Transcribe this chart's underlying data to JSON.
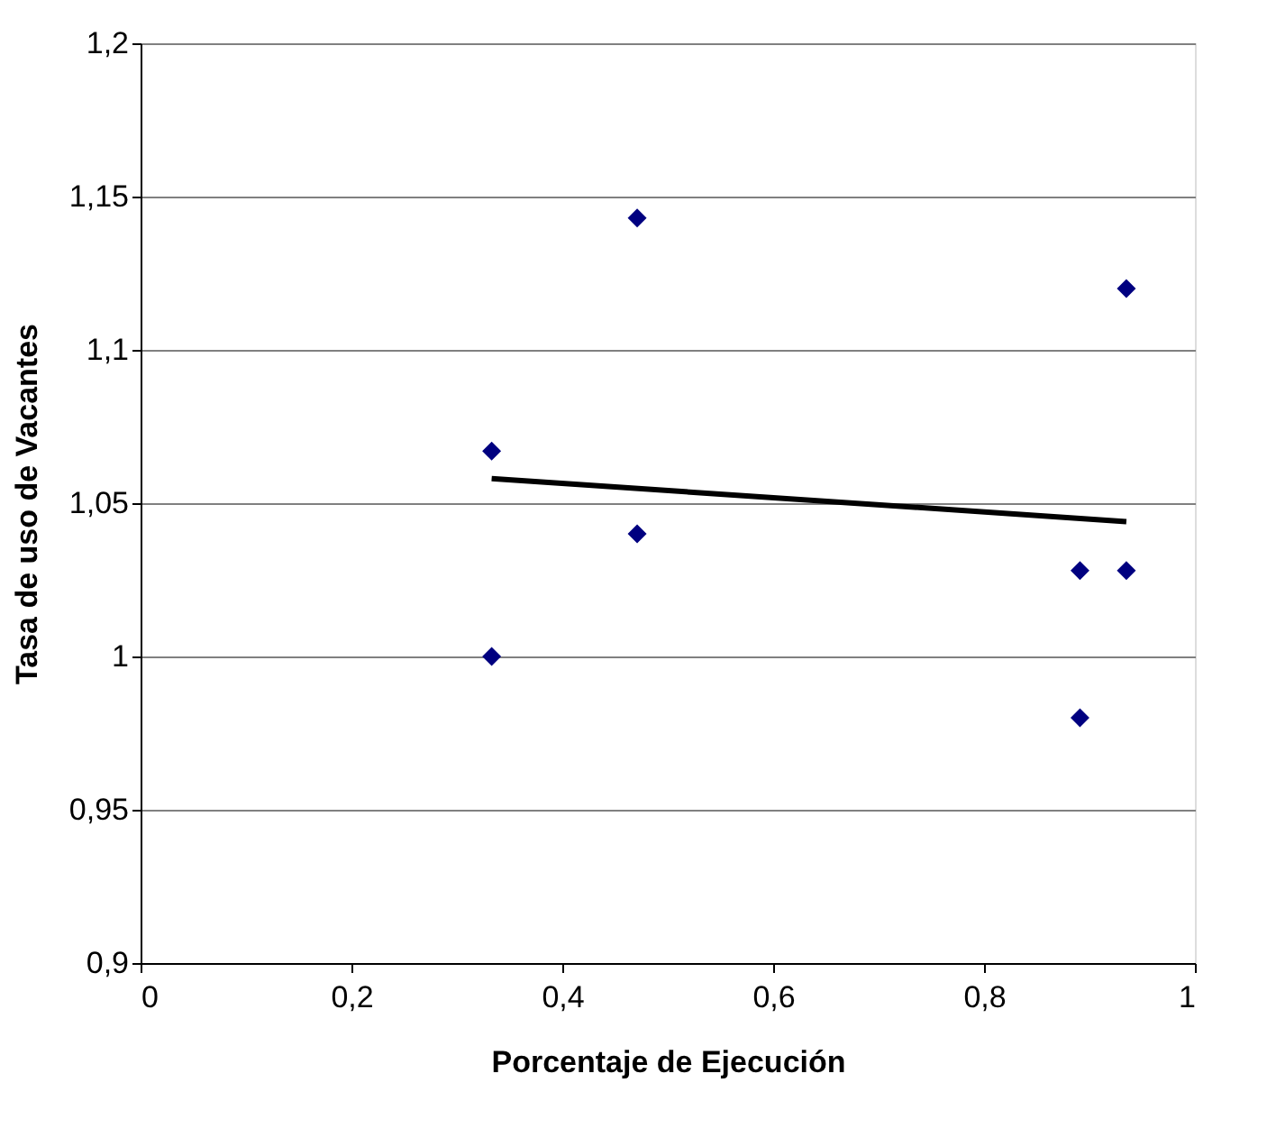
{
  "chart_data": {
    "type": "scatter",
    "xlabel": "Porcentaje de Ejecución",
    "ylabel": "Tasa de uso de Vacantes",
    "xlim": [
      0,
      1
    ],
    "xticks": [
      0,
      {
        "value": 0.2,
        "label": "0,2"
      },
      {
        "value": 0.4,
        "label": "0,4"
      },
      {
        "value": 0.6,
        "label": "0,6"
      },
      {
        "value": 0.8,
        "label": "0,8"
      },
      1
    ],
    "ylim": [
      0.9,
      1.2
    ],
    "yticks": [
      {
        "value": 0.9,
        "label": "0,9"
      },
      {
        "value": 0.95,
        "label": "0,95"
      },
      1,
      {
        "value": 1.05,
        "label": "1,05"
      },
      {
        "value": 1.1,
        "label": "1,1"
      },
      {
        "value": 1.15,
        "label": "1,15"
      },
      {
        "value": 1.2,
        "label": "1,2"
      }
    ],
    "grid": "y",
    "series": [
      {
        "color": "#000080",
        "marker": "diamond",
        "x": [
          0.333,
          0.333,
          0.471,
          0.471,
          0.891,
          0.891,
          0.935,
          0.935
        ],
        "values": [
          1.067,
          1.0,
          1.143,
          1.04,
          1.028,
          0.98,
          1.12,
          1.028
        ]
      },
      {
        "type": "line",
        "color": "#000000",
        "line_style": "solid",
        "x": [
          0.333,
          0.935
        ],
        "values": [
          1.058,
          1.044
        ]
      }
    ]
  }
}
